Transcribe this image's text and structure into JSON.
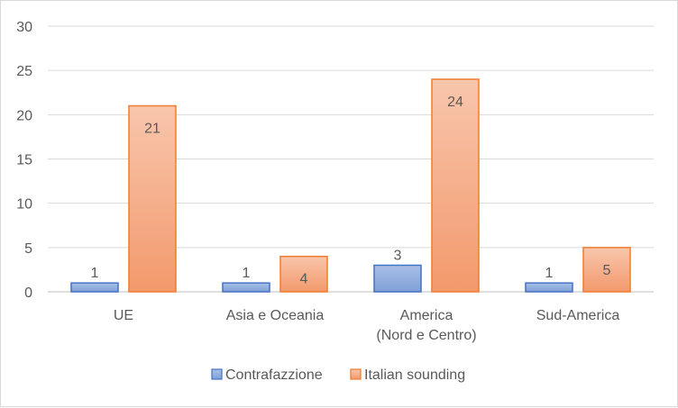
{
  "chart_data": {
    "type": "bar",
    "categories": [
      [
        "UE"
      ],
      [
        "Asia e Oceania"
      ],
      [
        "America",
        "(Nord e Centro)"
      ],
      [
        "Sud-America"
      ]
    ],
    "series": [
      {
        "name": "Contrafazzione",
        "values": [
          1,
          1,
          3,
          1
        ],
        "color": "#8eaadb",
        "stroke": "#4472c4"
      },
      {
        "name": "Italian sounding",
        "values": [
          21,
          4,
          24,
          5
        ],
        "color": "#f4a582",
        "stroke": "#ed7d31"
      }
    ],
    "ylim": [
      0,
      30
    ],
    "yticks": [
      0,
      5,
      10,
      15,
      20,
      25,
      30
    ],
    "grid": true,
    "legend": "bottom",
    "data_labels": true
  }
}
